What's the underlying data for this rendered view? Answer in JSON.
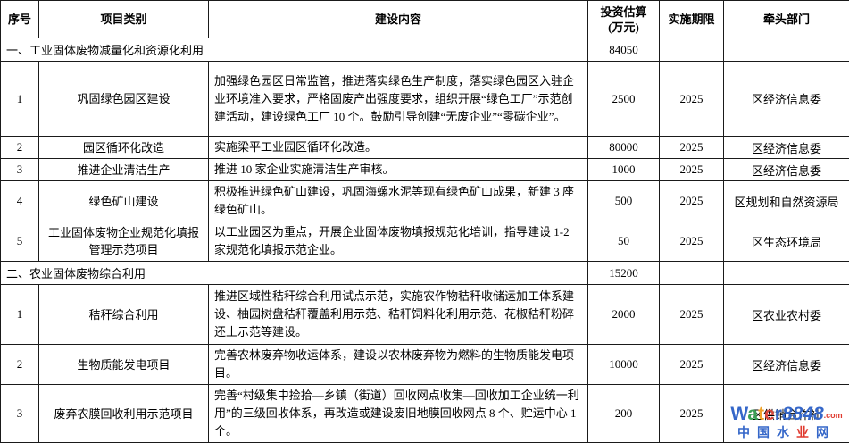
{
  "table": {
    "headers": [
      {
        "label": "序号"
      },
      {
        "label": "项目类别"
      },
      {
        "label": "建设内容"
      },
      {
        "label": "投资估算\n(万元)"
      },
      {
        "label": "实施期限"
      },
      {
        "label": "牵头部门"
      }
    ]
  },
  "sections": [
    {
      "title": "一、工业固体废物减量化和资源化利用",
      "investment": "84050",
      "rows": [
        {
          "no": "1",
          "category": "巩固绿色园区建设",
          "content": "加强绿色园区日常监管，推进落实绿色生产制度，落实绿色园区入驻企业环境准入要求，严格固废产出强度要求，组织开展“绿色工厂”示范创建活动，建设绿色工厂 10 个。鼓励引导创建“无废企业”“零碳企业”。",
          "investment": "2500",
          "period": "2025",
          "department": "区经济信息委"
        },
        {
          "no": "2",
          "category": "园区循环化改造",
          "content": "实施梁平工业园区循环化改造。",
          "investment": "80000",
          "period": "2025",
          "department": "区经济信息委"
        },
        {
          "no": "3",
          "category": "推进企业清洁生产",
          "content": "推进 10 家企业实施清洁生产审核。",
          "investment": "1000",
          "period": "2025",
          "department": "区经济信息委"
        },
        {
          "no": "4",
          "category": "绿色矿山建设",
          "content": "积极推进绿色矿山建设，巩固海螺水泥等现有绿色矿山成果，新建 3 座绿色矿山。",
          "investment": "500",
          "period": "2025",
          "department": "区规划和自然资源局"
        },
        {
          "no": "5",
          "category": "工业固体废物企业规范化填报管理示范项目",
          "content": "以工业园区为重点，开展企业固体废物填报规范化培训，指导建设 1-2 家规范化填报示范企业。",
          "investment": "50",
          "period": "2025",
          "department": "区生态环境局"
        }
      ]
    },
    {
      "title": "二、农业固体废物综合利用",
      "investment": "15200",
      "rows": [
        {
          "no": "1",
          "category": "秸秆综合利用",
          "content": "推进区域性秸秆综合利用试点示范，实施农作物秸秆收储运加工体系建设、柚园树盘秸秆覆盖利用示范、秸秆饲料化利用示范、花椒秸秆粉碎还土示范等建设。",
          "investment": "2000",
          "period": "2025",
          "department": "区农业农村委"
        },
        {
          "no": "2",
          "category": "生物质能发电项目",
          "content": "完善农林废弃物收运体系，建设以农林废弃物为燃料的生物质能发电项目。",
          "investment": "10000",
          "period": "2025",
          "department": "区经济信息委"
        },
        {
          "no": "3",
          "category": "废弃农膜回收利用示范项目",
          "content": "完善“村级集中捡拾—乡镇（街道）回收网点收集—回收加工企业统一利用”的三级回收体系，再改造或建设废旧地膜回收网点 8 个、贮运中心 1 个。",
          "investment": "200",
          "period": "2025",
          "department": "区供销合作社"
        }
      ]
    }
  ],
  "watermark": {
    "line1": [
      {
        "t": "W",
        "c": "#3567c9"
      },
      {
        "t": "a",
        "c": "#3aa055"
      },
      {
        "t": "t",
        "c": "#f0a32a"
      },
      {
        "t": "e",
        "c": "#d9483b"
      },
      {
        "t": "r",
        "c": "#3567c9"
      },
      {
        "t": "8848",
        "c": "#3567c9",
        "it": true
      },
      {
        "t": ".com",
        "c": "#e03a2f",
        "sm": true
      }
    ],
    "line2": [
      {
        "t": "中",
        "c": "#3567c9"
      },
      {
        "t": "国",
        "c": "#3567c9"
      },
      {
        "t": "水",
        "c": "#3567c9"
      },
      {
        "t": "业",
        "c": "#e03a2f"
      },
      {
        "t": "网",
        "c": "#3567c9"
      }
    ]
  },
  "colors": {
    "border": "#1a1a1a",
    "text": "#000000",
    "background": "#ffffff"
  }
}
